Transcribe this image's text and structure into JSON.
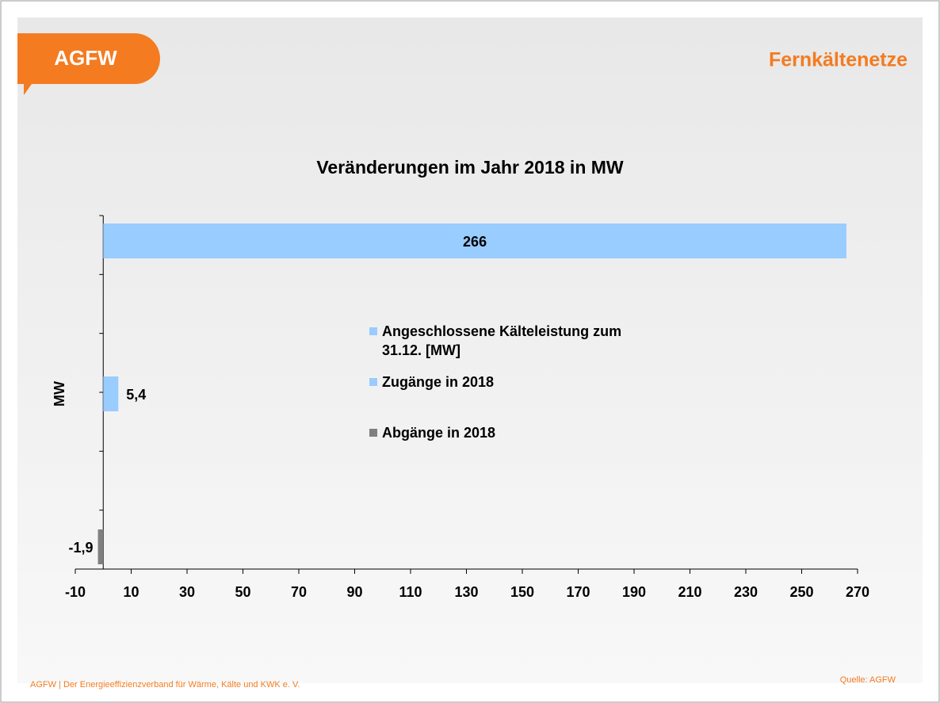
{
  "header": {
    "logo": "AGFW",
    "title": "Fernkältenetze"
  },
  "footer": {
    "left": "AGFW | Der Energieeffizienzverband für Wärme, Kälte und KWK e. V.",
    "right": "Quelle: AGFW"
  },
  "chart_data": {
    "type": "bar",
    "orientation": "horizontal",
    "title": "Veränderungen im Jahr 2018 in MW",
    "y_label": "MW",
    "categories": [
      null,
      null,
      null
    ],
    "series": [
      {
        "name": "Angeschlossene Kälteleistung zum 31.12. [MW]",
        "color": "#99ccff",
        "values": [
          266,
          null,
          null
        ],
        "value_labels": [
          "266",
          null,
          null
        ]
      },
      {
        "name": "Zugänge in 2018",
        "color": "#99ccff",
        "values": [
          null,
          5.4,
          null
        ],
        "value_labels": [
          null,
          "5,4",
          null
        ]
      },
      {
        "name": "Abgänge in 2018",
        "color": "#808080",
        "values": [
          null,
          null,
          -1.9
        ],
        "value_labels": [
          null,
          null,
          "-1,9"
        ]
      }
    ],
    "xlim": [
      -10,
      270
    ],
    "xticks": [
      -10,
      10,
      30,
      50,
      70,
      90,
      110,
      130,
      150,
      170,
      190,
      210,
      230,
      250,
      270
    ],
    "legend": "center"
  }
}
